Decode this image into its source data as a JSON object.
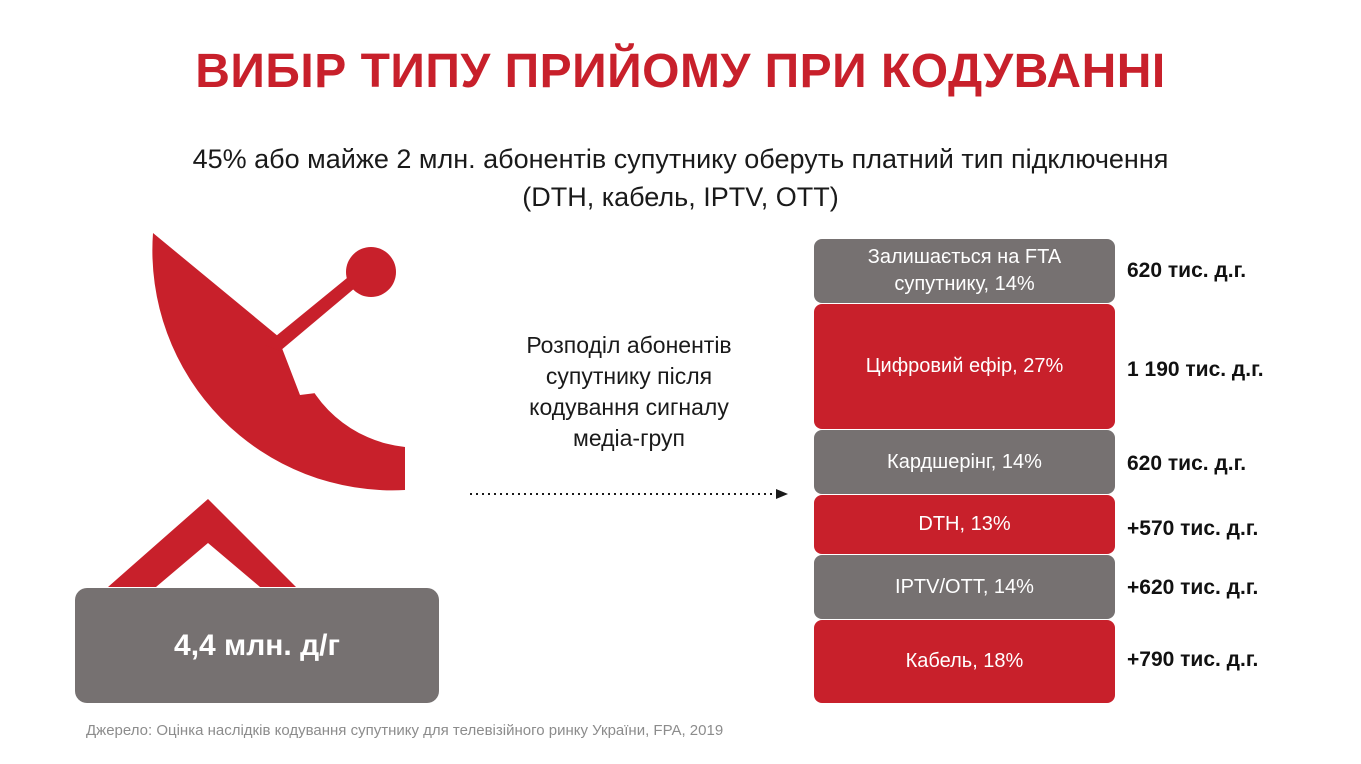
{
  "title": "ВИБІР ТИПУ ПРИЙОМУ ПРИ КОДУВАННІ",
  "subtitle": {
    "line1": "45% або майже 2 млн. абонентів супутнику оберуть платний тип підключення",
    "line2": "(DTH, кабель, IPTV, OTT)"
  },
  "total": "4,4 млн. д/г",
  "description": {
    "line1": "Розподіл абонентів",
    "line2": "супутнику після",
    "line3": "кодування сигналу",
    "line4": "медіа-груп"
  },
  "segments": [
    {
      "line1": "Залишається на FTA",
      "line2": "супутнику, 14%",
      "value": "620 тис. д.г.",
      "percent": 14,
      "color": "#767171"
    },
    {
      "line1": "Цифровий ефір, 27%",
      "line2": "",
      "value": "1 190 тис. д.г.",
      "percent": 27,
      "color": "#c8202b"
    },
    {
      "line1": "Кардшерінг, 14%",
      "line2": "",
      "value": "620 тис. д.г.",
      "percent": 14,
      "color": "#767171"
    },
    {
      "line1": "DTH, 13%",
      "line2": "",
      "value": "+570 тис. д.г.",
      "percent": 13,
      "color": "#c8202b"
    },
    {
      "line1": "IPTV/OTT, 14%",
      "line2": "",
      "value": "+620 тис. д.г.",
      "percent": 14,
      "color": "#767171"
    },
    {
      "line1": "Кабель, 18%",
      "line2": "",
      "value": "+790 тис. д.г.",
      "percent": 18,
      "color": "#c8202b"
    }
  ],
  "source": "Джерело: Оцінка наслідків кодування супутнику для телевізійного ринку України, FPA, 2019",
  "colors": {
    "accent_red": "#c8202b",
    "grey": "#767171"
  },
  "icons": {
    "dish": "satellite-dish-icon",
    "arrow": "dotted-arrow-right-icon"
  }
}
